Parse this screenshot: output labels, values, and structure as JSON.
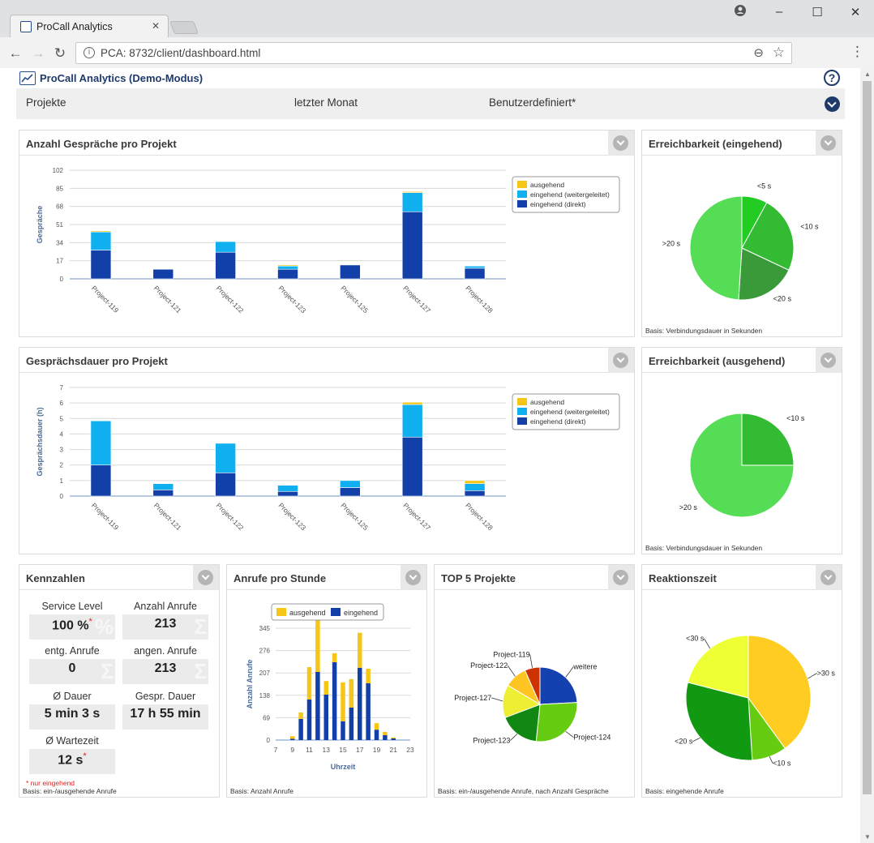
{
  "browser": {
    "tab_title": "ProCall Analytics",
    "url": "PCA: 8732/client/dashboard.html"
  },
  "app": {
    "title": "ProCall Analytics (Demo-Modus)",
    "help": "?"
  },
  "filters": {
    "projects": "Projekte",
    "period": "letzter Monat",
    "mode": "Benutzerdefiniert*"
  },
  "panels": {
    "calls_per_project": {
      "title": "Anzahl Gespräche pro Projekt"
    },
    "duration_per_project": {
      "title": "Gesprächsdauer pro Projekt"
    },
    "reach_in": {
      "title": "Erreichbarkeit (eingehend)",
      "basis": "Basis: Verbindungsdauer in Sekunden"
    },
    "reach_out": {
      "title": "Erreichbarkeit (ausgehend)",
      "basis": "Basis: Verbindungsdauer in Sekunden"
    },
    "kpis": {
      "title": "Kennzahlen",
      "note": "* nur eingehend",
      "basis": "Basis: ein-/ausgehende Anrufe"
    },
    "calls_per_hour": {
      "title": "Anrufe pro Stunde",
      "basis": "Basis: Anzahl Anrufe"
    },
    "top5": {
      "title": "TOP 5 Projekte",
      "basis": "Basis: ein-/ausgehende Anrufe, nach Anzahl Gespräche"
    },
    "reaction": {
      "title": "Reaktionszeit",
      "basis": "Basis: eingehende Anrufe"
    }
  },
  "kpis": [
    {
      "label": "Service Level",
      "value": "100 %",
      "star": "*",
      "mark": "%"
    },
    {
      "label": "Anzahl Anrufe",
      "value": "213",
      "star": "",
      "mark": "Σ"
    },
    {
      "label": "entg. Anrufe",
      "value": "0",
      "star": "",
      "mark": "Σ"
    },
    {
      "label": "angen. Anrufe",
      "value": "213",
      "star": "",
      "mark": "Σ"
    },
    {
      "label": "Ø Dauer",
      "value": "5 min 3 s",
      "star": "",
      "mark": ""
    },
    {
      "label": "Gespr. Dauer",
      "value": "17 h 55 min",
      "star": "",
      "mark": ""
    },
    {
      "label": "Ø Wartezeit",
      "value": "12 s",
      "star": "*",
      "mark": ""
    }
  ],
  "colors": {
    "ausgehend": "#f5c518",
    "weitergeleitet": "#10b0f0",
    "direkt": "#1340a8",
    "green_light": "#55dd55",
    "green_mid": "#33bb33",
    "green_dark": "#3a9a3a",
    "green_bright": "#22cc22"
  },
  "chart_data": [
    {
      "type": "bar",
      "title": "Anzahl Gespräche pro Projekt",
      "ylabel": "Gespräche",
      "ylim": [
        0,
        102
      ],
      "yticks": [
        0,
        17,
        34,
        51,
        68,
        85,
        102
      ],
      "categories": [
        "Project-119",
        "Project-121",
        "Project-122",
        "Project-123",
        "Project-125",
        "Project-127",
        "Project-128"
      ],
      "stacked": true,
      "legend": "top-right",
      "series": [
        {
          "name": "eingehend (direkt)",
          "values": [
            27,
            9,
            25,
            9,
            13,
            63,
            10
          ]
        },
        {
          "name": "eingehend (weitergeleitet)",
          "values": [
            17,
            0,
            10,
            3,
            0,
            18,
            2
          ]
        },
        {
          "name": "ausgehend",
          "values": [
            1,
            0,
            0,
            1,
            0,
            1,
            0
          ]
        }
      ]
    },
    {
      "type": "bar",
      "title": "Gesprächsdauer pro Projekt",
      "ylabel": "Gesprächsdauer (h)",
      "ylim": [
        0,
        7
      ],
      "yticks": [
        0,
        1,
        2,
        3,
        4,
        5,
        6,
        7
      ],
      "categories": [
        "Project-119",
        "Project-121",
        "Project-122",
        "Project-123",
        "Project-125",
        "Project-127",
        "Project-128"
      ],
      "stacked": true,
      "legend": "top-right",
      "series": [
        {
          "name": "eingehend (direkt)",
          "values": [
            2.0,
            0.4,
            1.5,
            0.3,
            0.55,
            3.8,
            0.35
          ]
        },
        {
          "name": "eingehend (weitergeleitet)",
          "values": [
            2.85,
            0.4,
            1.9,
            0.4,
            0.45,
            2.1,
            0.45
          ]
        },
        {
          "name": "ausgehend",
          "values": [
            0.02,
            0,
            0,
            0.03,
            0,
            0.15,
            0.2
          ]
        }
      ]
    },
    {
      "type": "pie",
      "title": "Erreichbarkeit (eingehend)",
      "slices": [
        {
          "label": "<5 s",
          "value": 8,
          "color": "#22cc22"
        },
        {
          "label": "<10 s",
          "value": 24,
          "color": "#33bb33"
        },
        {
          "label": "<20 s",
          "value": 19,
          "color": "#3a9a3a"
        },
        {
          "label": ">20 s",
          "value": 49,
          "color": "#55dd55"
        }
      ]
    },
    {
      "type": "pie",
      "title": "Erreichbarkeit (ausgehend)",
      "slices": [
        {
          "label": "<10 s",
          "value": 25,
          "color": "#33bb33"
        },
        {
          "label": ">20 s",
          "value": 75,
          "color": "#55dd55"
        }
      ]
    },
    {
      "type": "bar",
      "title": "Anrufe pro Stunde",
      "xlabel": "Uhrzeit",
      "ylabel": "Anzahl Anrufe",
      "ylim": [
        0,
        345
      ],
      "yticks": [
        0,
        69,
        138,
        207,
        276,
        345
      ],
      "xticks": [
        7,
        9,
        11,
        13,
        15,
        17,
        19,
        21,
        23
      ],
      "legend": "top",
      "stacked": true,
      "x": [
        8,
        9,
        10,
        11,
        12,
        13,
        14,
        15,
        16,
        17,
        18,
        19,
        20,
        21
      ],
      "series": [
        {
          "name": "eingehend",
          "values": [
            0,
            4,
            65,
            125,
            210,
            140,
            240,
            58,
            100,
            223,
            175,
            32,
            15,
            5
          ]
        },
        {
          "name": "ausgehend",
          "values": [
            0,
            8,
            20,
            100,
            168,
            42,
            28,
            120,
            88,
            108,
            45,
            20,
            10,
            3
          ]
        }
      ]
    },
    {
      "type": "pie",
      "title": "TOP 5 Projekte",
      "slices": [
        {
          "label": "weitere",
          "value": 22,
          "color": "#1540b0"
        },
        {
          "label": "Project-124",
          "value": 25,
          "color": "#66cc11"
        },
        {
          "label": "Project-123",
          "value": 16,
          "color": "#118811"
        },
        {
          "label": "Project-127",
          "value": 13,
          "color": "#eeee33"
        },
        {
          "label": "Project-122",
          "value": 9,
          "color": "#ffc522"
        },
        {
          "label": "Project-119",
          "value": 6,
          "color": "#cc3300"
        }
      ]
    },
    {
      "type": "pie",
      "title": "Reaktionszeit",
      "slices": [
        {
          "label": ">30 s",
          "value": 40,
          "color": "#ffcc22"
        },
        {
          "label": "<10 s",
          "value": 9,
          "color": "#66cc11"
        },
        {
          "label": "<20 s",
          "value": 30,
          "color": "#119911"
        },
        {
          "label": "<30 s",
          "value": 21,
          "color": "#eeff33"
        }
      ]
    }
  ]
}
